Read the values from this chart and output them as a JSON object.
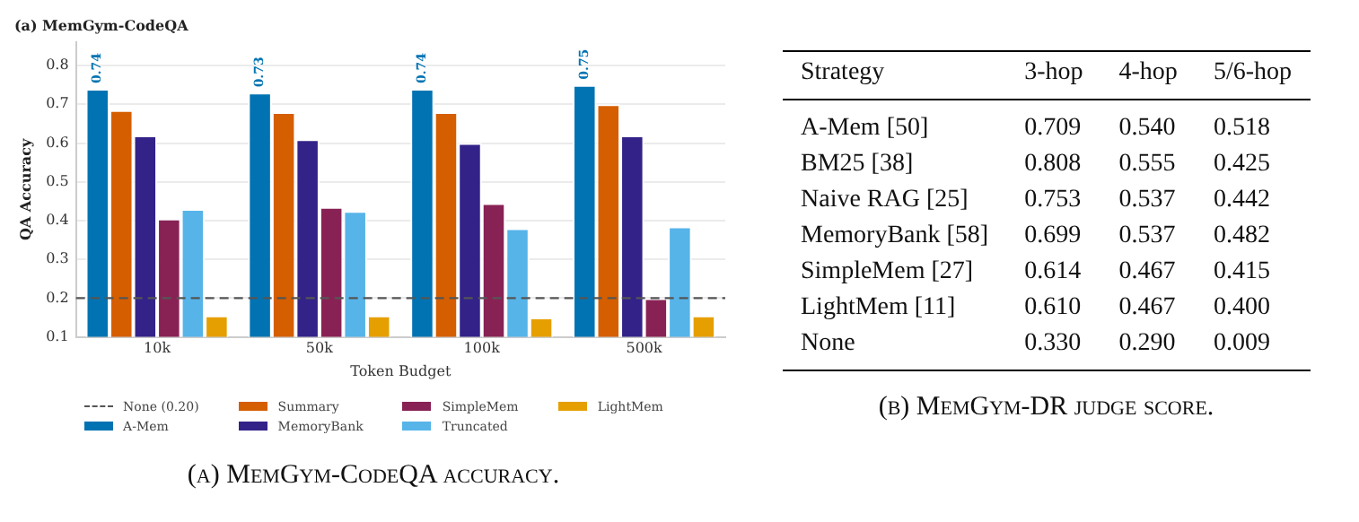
{
  "chart_data": [
    {
      "type": "bar",
      "title": "(a) MemGym-CodeQA",
      "xlabel": "Token Budget",
      "ylabel": "QA Accuracy",
      "categories": [
        "10k",
        "50k",
        "100k",
        "500k"
      ],
      "series": [
        {
          "name": "A-Mem",
          "color": "#0173b2",
          "values": [
            0.74,
            0.73,
            0.74,
            0.75
          ],
          "value_labels": [
            "0.74",
            "0.73",
            "0.74",
            "0.75"
          ]
        },
        {
          "name": "Summary",
          "color": "#d55e00",
          "values": [
            0.685,
            0.68,
            0.68,
            0.7
          ]
        },
        {
          "name": "MemoryBank",
          "color": "#332288",
          "values": [
            0.62,
            0.61,
            0.6,
            0.62
          ]
        },
        {
          "name": "SimpleMem",
          "color": "#882255",
          "values": [
            0.405,
            0.435,
            0.445,
            0.2
          ]
        },
        {
          "name": "Truncated",
          "color": "#56b4e9",
          "values": [
            0.43,
            0.425,
            0.38,
            0.385
          ]
        },
        {
          "name": "LightMem",
          "color": "#e69f00",
          "values": [
            0.155,
            0.155,
            0.15,
            0.155
          ]
        }
      ],
      "ref_lines": [
        {
          "axis": "y",
          "value": 0.2,
          "label": "None (0.20)",
          "color": "#555555",
          "line_style": "dashed"
        }
      ],
      "ylim": [
        0.1,
        0.86
      ],
      "yticks": [
        0.1,
        0.2,
        0.3,
        0.4,
        0.5,
        0.6,
        0.7,
        0.8
      ],
      "grid": "y",
      "legend": "bottom",
      "annotations": [
        "(a) MemGym-CodeQA accuracy."
      ]
    },
    {
      "type": "other",
      "title": "(b) MemGym-DR judge score.",
      "xlabel": "Strategy",
      "categories": [
        "A-Mem [50]",
        "BM25 [38]",
        "Naive RAG [25]",
        "MemoryBank [58]",
        "SimpleMem [27]",
        "LightMem [11]",
        "None"
      ],
      "series": [
        {
          "name": "3-hop",
          "values": [
            0.709,
            0.808,
            0.753,
            0.699,
            0.614,
            0.61,
            0.33
          ],
          "value_labels": [
            "0.709",
            "0.808",
            "0.753",
            "0.699",
            "0.614",
            "0.610",
            "0.330"
          ]
        },
        {
          "name": "4-hop",
          "values": [
            0.54,
            0.555,
            0.537,
            0.537,
            0.467,
            0.467,
            0.29
          ],
          "value_labels": [
            "0.540",
            "0.555",
            "0.537",
            "0.537",
            "0.467",
            "0.467",
            "0.290"
          ]
        },
        {
          "name": "5/6-hop",
          "values": [
            0.518,
            0.425,
            0.442,
            0.482,
            0.415,
            0.4,
            0.009
          ],
          "value_labels": [
            "0.518",
            "0.425",
            "0.442",
            "0.482",
            "0.415",
            "0.400",
            "0.009"
          ]
        }
      ]
    }
  ]
}
